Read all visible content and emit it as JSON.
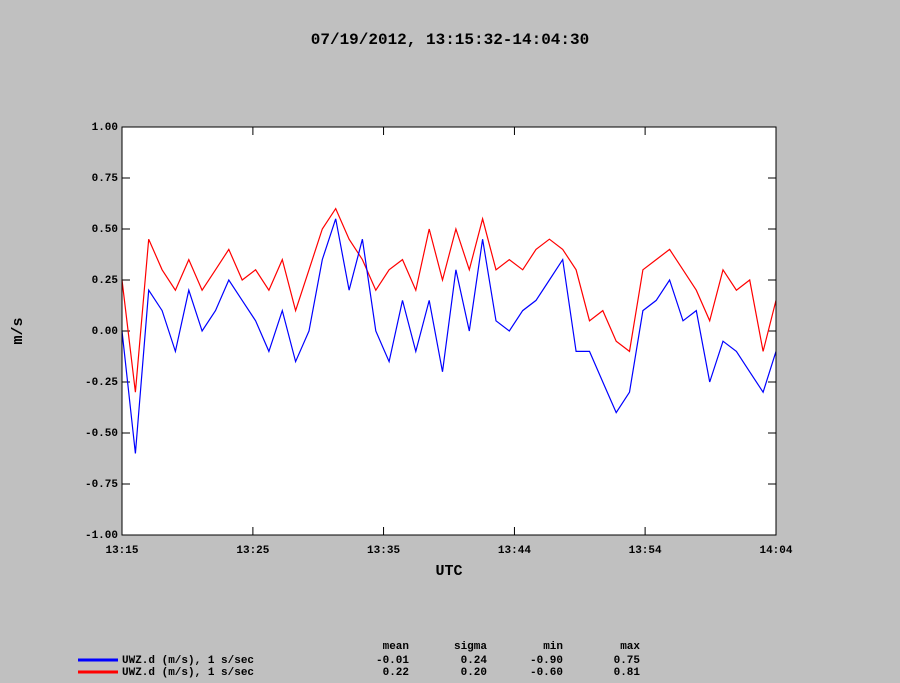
{
  "chart_data": {
    "type": "line",
    "title": "07/19/2012, 13:15:32-14:04:30",
    "x_label": "UTC",
    "y_label": "m/s",
    "xlim": [
      "13:15:32",
      "14:04:30"
    ],
    "xticks": [
      {
        "value": "13:15:32",
        "label": "13:15"
      },
      {
        "value": "13:25:20",
        "label": "13:25"
      },
      {
        "value": "13:35:07",
        "label": "13:35"
      },
      {
        "value": "13:44:55",
        "label": "13:44"
      },
      {
        "value": "13:54:42",
        "label": "13:54"
      },
      {
        "value": "14:04:30",
        "label": "14:04"
      }
    ],
    "ylim": [
      -1,
      1
    ],
    "yticks": [
      {
        "value": -1,
        "label": "-1.00"
      },
      {
        "value": -0.75,
        "label": "-0.75"
      },
      {
        "value": -0.5,
        "label": "-0.50"
      },
      {
        "value": -0.25,
        "label": "-0.25"
      },
      {
        "value": 0,
        "label": "0.00"
      },
      {
        "value": 0.25,
        "label": "0.25"
      },
      {
        "value": 0.5,
        "label": "0.50"
      },
      {
        "value": 0.75,
        "label": "0.75"
      },
      {
        "value": 1,
        "label": "1.00"
      }
    ],
    "x": [
      "13:15:32",
      "13:16:32",
      "13:17:32",
      "13:18:32",
      "13:19:32",
      "13:20:32",
      "13:21:32",
      "13:22:32",
      "13:23:32",
      "13:24:32",
      "13:25:32",
      "13:26:32",
      "13:27:32",
      "13:28:32",
      "13:29:32",
      "13:30:32",
      "13:31:32",
      "13:32:32",
      "13:33:32",
      "13:34:32",
      "13:35:32",
      "13:36:32",
      "13:37:32",
      "13:38:32",
      "13:39:32",
      "13:40:32",
      "13:41:32",
      "13:42:32",
      "13:43:32",
      "13:44:32",
      "13:45:32",
      "13:46:32",
      "13:47:32",
      "13:48:32",
      "13:49:32",
      "13:50:32",
      "13:51:32",
      "13:52:32",
      "13:53:32",
      "13:54:32",
      "13:55:32",
      "13:56:32",
      "13:57:32",
      "13:58:32",
      "13:59:32",
      "14:00:32",
      "14:01:32",
      "14:02:32",
      "14:03:32",
      "14:04:30"
    ],
    "series": [
      {
        "name": "UWZ.d (m/s), 1 s/sec",
        "color": "#0000ff",
        "values": [
          0.0,
          -0.6,
          0.2,
          0.1,
          -0.1,
          0.2,
          0.0,
          0.1,
          0.25,
          0.15,
          0.05,
          -0.1,
          0.1,
          -0.15,
          0.0,
          0.35,
          0.55,
          0.2,
          0.45,
          0.0,
          -0.15,
          0.15,
          -0.1,
          0.15,
          -0.2,
          0.3,
          0.0,
          0.45,
          0.05,
          0.0,
          0.1,
          0.15,
          0.25,
          0.35,
          -0.1,
          -0.1,
          -0.25,
          -0.4,
          -0.3,
          0.1,
          0.15,
          0.25,
          0.05,
          0.1,
          -0.25,
          -0.05,
          -0.1,
          -0.2,
          -0.3,
          -0.1
        ]
      },
      {
        "name": "UWZ.d (m/s), 1 s/sec",
        "color": "#ff0000",
        "values": [
          0.25,
          -0.3,
          0.45,
          0.3,
          0.2,
          0.35,
          0.2,
          0.3,
          0.4,
          0.25,
          0.3,
          0.2,
          0.35,
          0.1,
          0.3,
          0.5,
          0.6,
          0.45,
          0.35,
          0.2,
          0.3,
          0.35,
          0.2,
          0.5,
          0.25,
          0.5,
          0.3,
          0.55,
          0.3,
          0.35,
          0.3,
          0.4,
          0.45,
          0.4,
          0.3,
          0.05,
          0.1,
          -0.05,
          -0.1,
          0.3,
          0.35,
          0.4,
          0.3,
          0.2,
          0.05,
          0.3,
          0.2,
          0.25,
          -0.1,
          0.15
        ]
      }
    ],
    "stats_table": {
      "columns": [
        "mean",
        "sigma",
        "min",
        "max"
      ],
      "rows": [
        [
          "-0.01",
          "0.24",
          "-0.90",
          "0.75"
        ],
        [
          "0.22",
          "0.20",
          "-0.60",
          "0.81"
        ]
      ]
    }
  }
}
